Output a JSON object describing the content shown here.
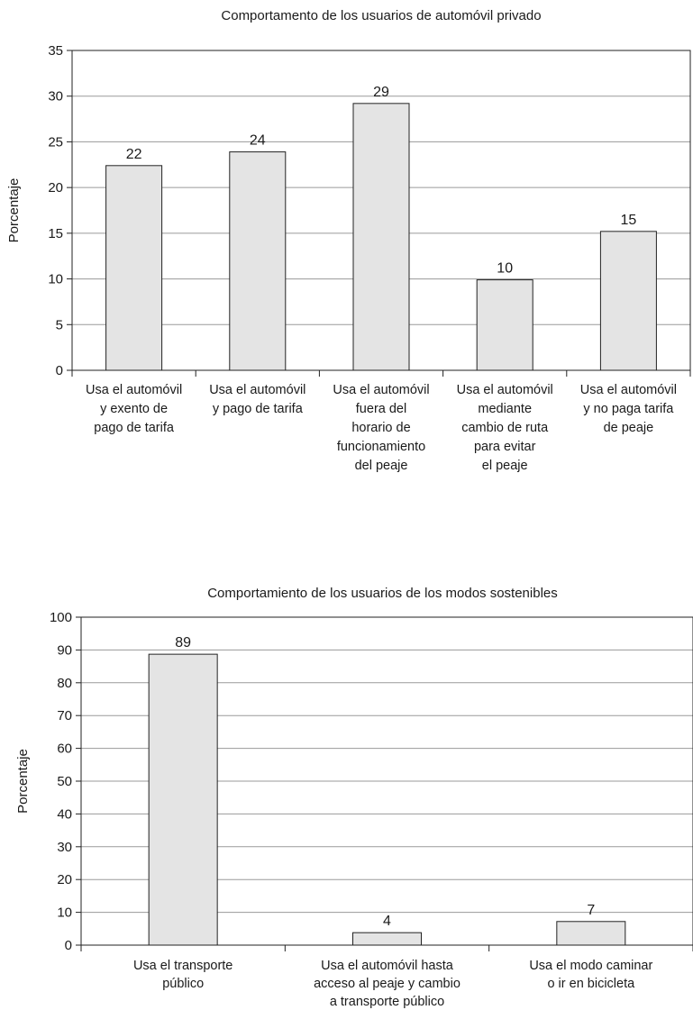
{
  "chart_data": [
    {
      "type": "bar",
      "title": "Comportamento de los usuarios de automóvil privado",
      "ylabel": "Porcentaje",
      "xlabel": "",
      "ylim": [
        0,
        35
      ],
      "yticks": [
        0,
        5,
        10,
        15,
        20,
        25,
        30,
        35
      ],
      "grid": true,
      "categories": [
        [
          "Usa el automóvil",
          "y exento de",
          "pago de  tarifa"
        ],
        [
          "Usa el automóvil",
          "y pago de tarifa"
        ],
        [
          "Usa el automóvil",
          "fuera del",
          "horario de",
          "funcionamiento",
          "del peaje"
        ],
        [
          "Usa el automóvil",
          "mediante",
          "cambio de ruta",
          "para evitar",
          "el peaje"
        ],
        [
          "Usa el automóvil",
          "y no paga tarifa",
          "de peaje"
        ]
      ],
      "values": [
        22.4,
        23.9,
        29.2,
        9.9,
        15.2
      ],
      "data_labels": [
        "22",
        "24",
        "29",
        "10",
        "15"
      ]
    },
    {
      "type": "bar",
      "title": "Comportamiento de los  usuarios de los modos sostenibles",
      "ylabel": "Porcentaje",
      "xlabel": "",
      "ylim": [
        0,
        100
      ],
      "yticks": [
        0,
        10,
        20,
        30,
        40,
        50,
        60,
        70,
        80,
        90,
        100
      ],
      "grid": true,
      "categories": [
        [
          "Usa el transporte",
          "público"
        ],
        [
          "Usa el automóvil hasta",
          "acceso al peaje y cambio",
          "a transporte público"
        ],
        [
          "Usa el modo caminar",
          "o ir en bicicleta"
        ]
      ],
      "values": [
        88.7,
        3.8,
        7.2
      ],
      "data_labels": [
        "89",
        "4",
        "7"
      ]
    }
  ]
}
